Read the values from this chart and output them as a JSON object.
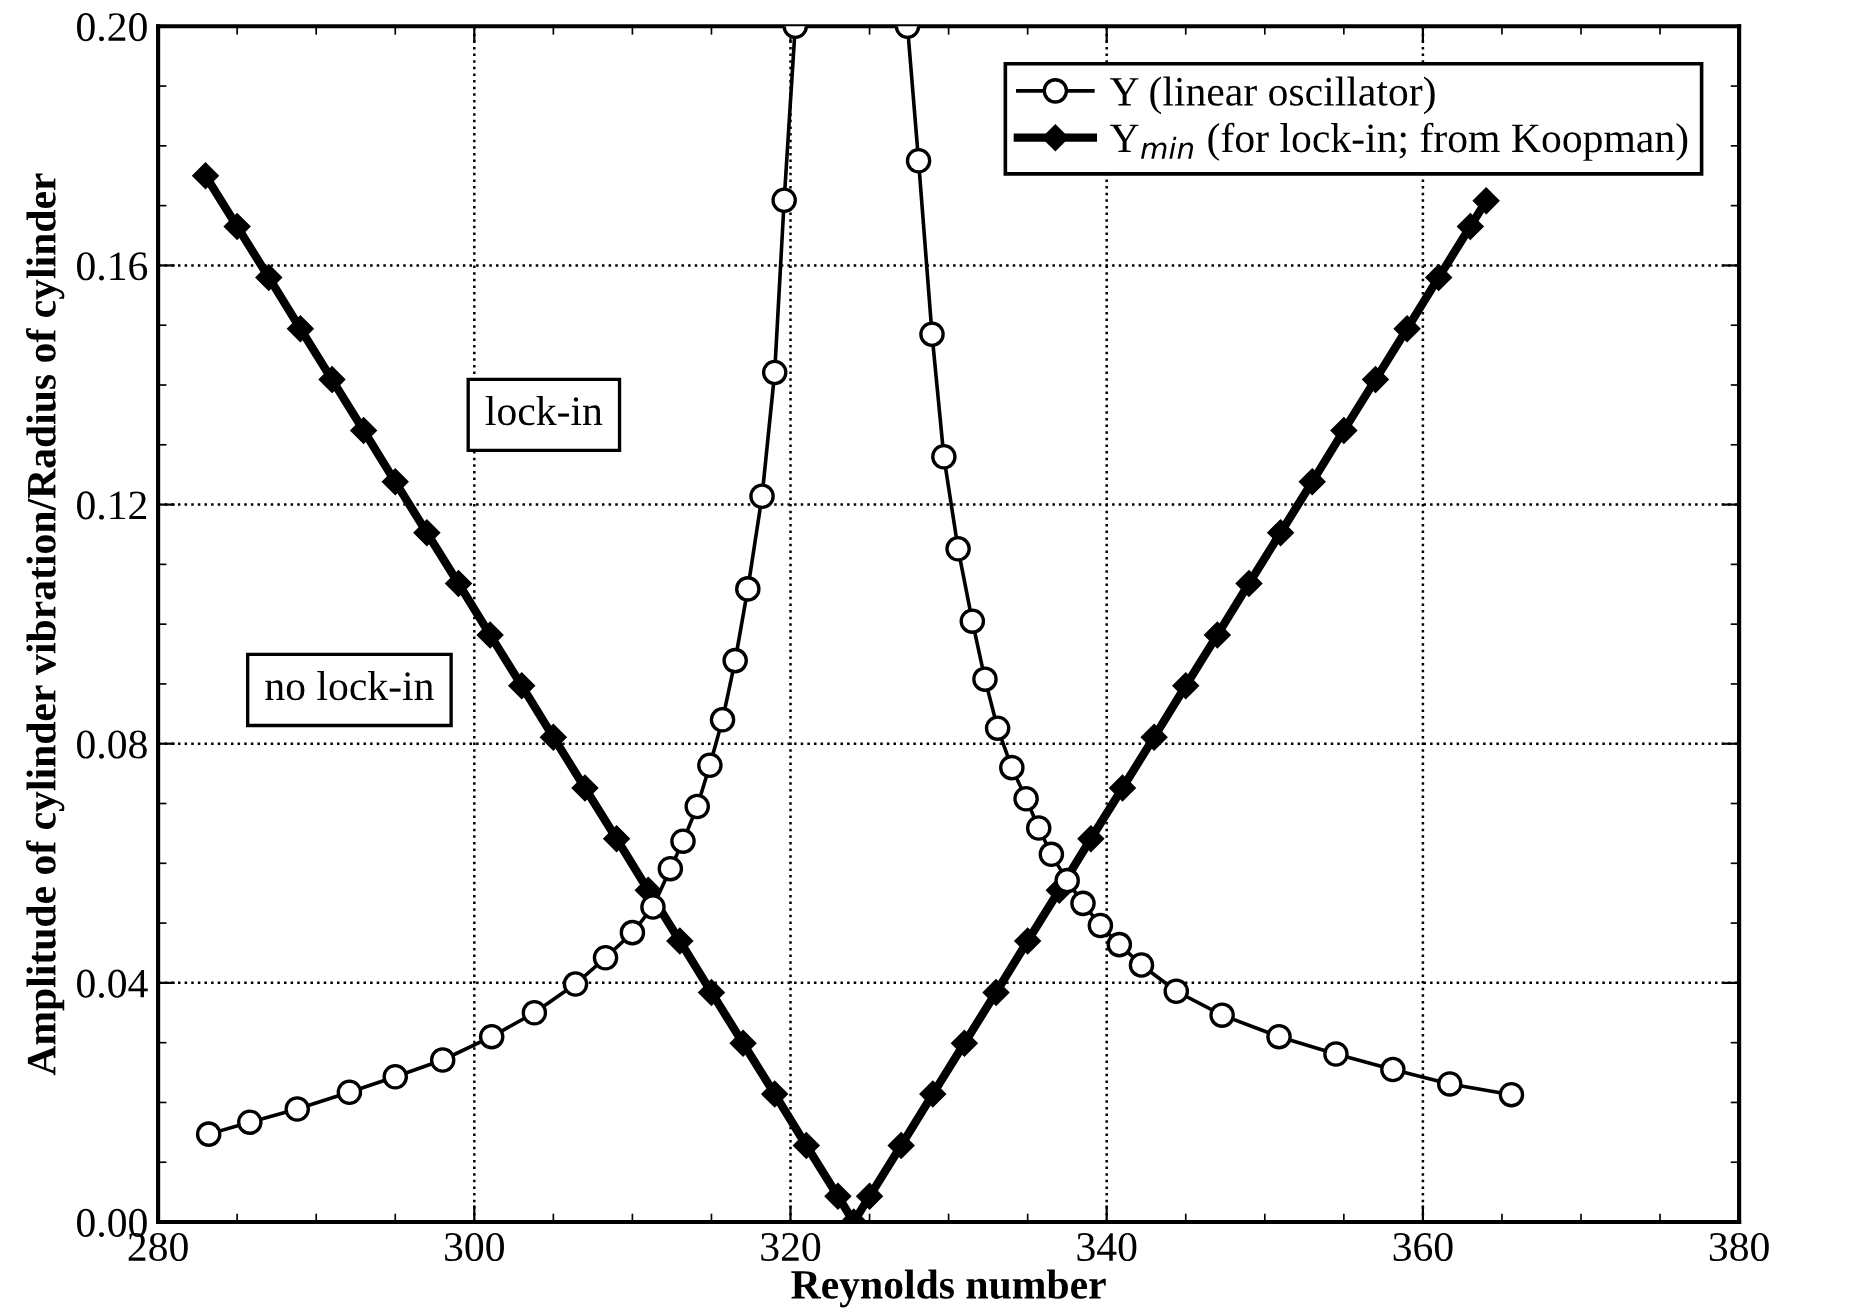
{
  "chart_data": {
    "type": "line",
    "xlabel": "Reynolds number",
    "ylabel": "Amplitude of cylinder vibration/Radius of cylinder",
    "xlim": [
      280,
      380
    ],
    "xticks": [
      280,
      300,
      320,
      340,
      360,
      380
    ],
    "ylim": [
      0,
      0.2
    ],
    "yticks": [
      {
        "value": 0,
        "label": "0.00"
      },
      {
        "value": 0.04,
        "label": "0.04"
      },
      {
        "value": 0.08,
        "label": "0.08"
      },
      {
        "value": 0.12,
        "label": "0.12"
      },
      {
        "value": 0.16,
        "label": "0.16"
      },
      {
        "value": 0.2,
        "label": "0.20"
      }
    ],
    "grid": true,
    "legend": "top right",
    "annotations": [
      "lock-in",
      "no lock-in"
    ],
    "series": [
      {
        "name": "Y (linear oscillator)",
        "color": "#000000",
        "marker": "circle",
        "line_style": "solid",
        "x": [
          283.2,
          285.8,
          288.8,
          292.1,
          295.0,
          298.0,
          301.1,
          303.8,
          306.4,
          308.3,
          310.0,
          311.3,
          312.4,
          313.2,
          314.1,
          314.9,
          315.7,
          316.5,
          317.3,
          318.2,
          319.0,
          319.6,
          320.3,
          null,
          327.4,
          328.1,
          328.95,
          329.7,
          330.6,
          331.5,
          332.3,
          333.1,
          334.0,
          334.9,
          335.7,
          336.5,
          337.5,
          338.5,
          339.6,
          340.8,
          342.2,
          344.4,
          347.3,
          350.9,
          354.5,
          358.1,
          361.7,
          365.6
        ],
        "values": [
          0.0147,
          0.0167,
          0.0189,
          0.0217,
          0.0243,
          0.0271,
          0.031,
          0.035,
          0.0398,
          0.0442,
          0.0484,
          0.0527,
          0.0591,
          0.0637,
          0.0695,
          0.0764,
          0.084,
          0.0939,
          0.1059,
          0.1214,
          0.1421,
          0.1709,
          0.2,
          null,
          0.2,
          0.1775,
          0.1485,
          0.128,
          0.1126,
          0.1005,
          0.0908,
          0.0826,
          0.076,
          0.0708,
          0.0659,
          0.0615,
          0.0571,
          0.0533,
          0.0496,
          0.0464,
          0.043,
          0.0386,
          0.0346,
          0.031,
          0.0281,
          0.0255,
          0.0231,
          0.0213
        ]
      },
      {
        "name": "Y$_{min}$ (for lock-in; from Koopman)",
        "color": "#000000",
        "marker": "diamond",
        "line_style": "solid",
        "x": [
          283,
          285,
          287,
          289,
          291,
          293,
          295,
          297,
          299,
          301,
          303,
          305,
          307,
          309,
          311,
          313,
          315,
          317,
          319,
          321,
          323,
          324,
          325,
          327,
          329,
          331,
          333,
          335,
          337,
          339,
          341,
          343,
          345,
          347,
          349,
          351,
          353,
          355,
          357,
          359,
          361,
          363,
          364
        ],
        "values": [
          0.175,
          0.1665,
          0.158,
          0.1494,
          0.1409,
          0.1324,
          0.1238,
          0.1153,
          0.1068,
          0.0982,
          0.0897,
          0.0811,
          0.0726,
          0.0641,
          0.0555,
          0.047,
          0.0384,
          0.0299,
          0.0214,
          0.0128,
          0.0043,
          0,
          0.0043,
          0.0128,
          0.0214,
          0.0299,
          0.0384,
          0.047,
          0.0555,
          0.0641,
          0.0726,
          0.0811,
          0.0897,
          0.0982,
          0.1068,
          0.1153,
          0.1238,
          0.1324,
          0.1409,
          0.1494,
          0.158,
          0.1665,
          0.1708
        ]
      }
    ]
  }
}
